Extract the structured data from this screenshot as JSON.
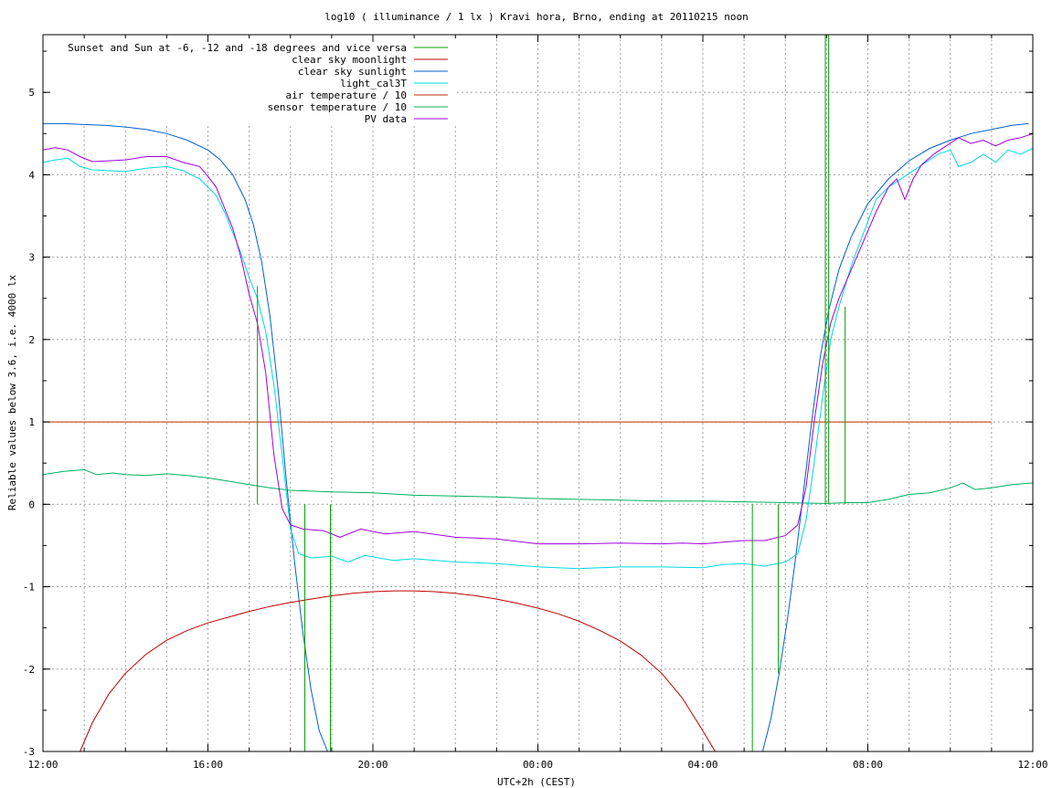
{
  "chart_data": {
    "type": "line",
    "title": "log10 ( illuminance / 1 lx ) Kravi hora, Brno, ending at 20110215 noon",
    "xlabel": "UTC+2h (CEST)",
    "ylabel": "Reliable values below 3.6, i.e. 4000 lx",
    "xlim": [
      12,
      36
    ],
    "ylim": [
      -3,
      5.7
    ],
    "grid": true,
    "legend_position": "top-left",
    "x_ticks": [
      {
        "v": 12,
        "label": "12:00"
      },
      {
        "v": 16,
        "label": "16:00"
      },
      {
        "v": 20,
        "label": "20:00"
      },
      {
        "v": 24,
        "label": "00:00"
      },
      {
        "v": 28,
        "label": "04:00"
      },
      {
        "v": 32,
        "label": "08:00"
      },
      {
        "v": 36,
        "label": "12:00"
      }
    ],
    "x_minor_step": 1,
    "y_ticks": [
      {
        "v": -3,
        "label": "-3"
      },
      {
        "v": -2,
        "label": "-2"
      },
      {
        "v": -1,
        "label": "-1"
      },
      {
        "v": 0,
        "label": "0"
      },
      {
        "v": 1,
        "label": "1"
      },
      {
        "v": 2,
        "label": "2"
      },
      {
        "v": 3,
        "label": "3"
      },
      {
        "v": 4,
        "label": "4"
      },
      {
        "v": 5,
        "label": "5"
      }
    ],
    "y_minor_step": 0.5,
    "series": [
      {
        "name": "Sunset and Sun at -6, -12 and -18 degrees and vice versa",
        "color": "#00a000",
        "kind": "impulses",
        "values": [
          {
            "x": 17.2,
            "y": 2.65
          },
          {
            "x": 18.35,
            "y": -3
          },
          {
            "x": 18.97,
            "y": -3
          },
          {
            "x": 29.2,
            "y": -3
          },
          {
            "x": 29.83,
            "y": -2.05
          },
          {
            "x": 30.97,
            "y": 5.7
          },
          {
            "x": 31.05,
            "y": 5.7
          },
          {
            "x": 31.45,
            "y": 2.4
          }
        ]
      },
      {
        "name": "clear sky moonlight",
        "color": "#c00000",
        "kind": "line",
        "values": [
          [
            12.9,
            -3
          ],
          [
            13.2,
            -2.65
          ],
          [
            13.6,
            -2.3
          ],
          [
            14.0,
            -2.05
          ],
          [
            14.5,
            -1.82
          ],
          [
            15.0,
            -1.65
          ],
          [
            15.5,
            -1.53
          ],
          [
            16.0,
            -1.44
          ],
          [
            16.5,
            -1.37
          ],
          [
            17.0,
            -1.3
          ],
          [
            17.5,
            -1.24
          ],
          [
            18.0,
            -1.19
          ],
          [
            18.5,
            -1.15
          ],
          [
            19.0,
            -1.11
          ],
          [
            19.5,
            -1.08
          ],
          [
            20.0,
            -1.06
          ],
          [
            20.5,
            -1.05
          ],
          [
            21.0,
            -1.05
          ],
          [
            21.5,
            -1.06
          ],
          [
            22.0,
            -1.08
          ],
          [
            22.5,
            -1.11
          ],
          [
            23.0,
            -1.15
          ],
          [
            23.5,
            -1.2
          ],
          [
            24.0,
            -1.26
          ],
          [
            24.5,
            -1.33
          ],
          [
            25.0,
            -1.42
          ],
          [
            25.5,
            -1.53
          ],
          [
            26.0,
            -1.66
          ],
          [
            26.5,
            -1.83
          ],
          [
            27.0,
            -2.05
          ],
          [
            27.5,
            -2.35
          ],
          [
            28.0,
            -2.75
          ],
          [
            28.3,
            -3.0
          ]
        ]
      },
      {
        "name": "clear sky sunlight",
        "color": "#0060d0",
        "kind": "line",
        "values": [
          [
            12.0,
            4.62
          ],
          [
            12.5,
            4.62
          ],
          [
            13.0,
            4.61
          ],
          [
            13.5,
            4.6
          ],
          [
            14.0,
            4.58
          ],
          [
            14.5,
            4.55
          ],
          [
            15.0,
            4.5
          ],
          [
            15.5,
            4.42
          ],
          [
            16.0,
            4.3
          ],
          [
            16.3,
            4.18
          ],
          [
            16.6,
            4.0
          ],
          [
            16.9,
            3.7
          ],
          [
            17.1,
            3.4
          ],
          [
            17.3,
            2.95
          ],
          [
            17.5,
            2.3
          ],
          [
            17.7,
            1.4
          ],
          [
            17.9,
            0.3
          ],
          [
            18.1,
            -0.7
          ],
          [
            18.3,
            -1.55
          ],
          [
            18.5,
            -2.25
          ],
          [
            18.7,
            -2.75
          ],
          [
            18.9,
            -3.0
          ],
          [
            29.45,
            -3.0
          ],
          [
            29.65,
            -2.6
          ],
          [
            29.85,
            -2.05
          ],
          [
            30.05,
            -1.4
          ],
          [
            30.25,
            -0.65
          ],
          [
            30.45,
            0.2
          ],
          [
            30.65,
            1.05
          ],
          [
            30.85,
            1.8
          ],
          [
            31.05,
            2.35
          ],
          [
            31.3,
            2.85
          ],
          [
            31.6,
            3.25
          ],
          [
            32.0,
            3.65
          ],
          [
            32.5,
            3.95
          ],
          [
            33.0,
            4.17
          ],
          [
            33.5,
            4.32
          ],
          [
            34.0,
            4.42
          ],
          [
            34.5,
            4.5
          ],
          [
            35.0,
            4.55
          ],
          [
            35.5,
            4.6
          ],
          [
            35.9,
            4.62
          ]
        ]
      },
      {
        "name": "light_cal3T",
        "color": "#00d8e0",
        "kind": "line",
        "values": [
          [
            12.0,
            4.15
          ],
          [
            12.3,
            4.18
          ],
          [
            12.6,
            4.2
          ],
          [
            12.9,
            4.1
          ],
          [
            13.2,
            4.06
          ],
          [
            13.6,
            4.05
          ],
          [
            14.0,
            4.04
          ],
          [
            14.5,
            4.08
          ],
          [
            15.0,
            4.1
          ],
          [
            15.4,
            4.05
          ],
          [
            15.8,
            3.95
          ],
          [
            16.0,
            3.85
          ],
          [
            16.2,
            3.75
          ],
          [
            16.4,
            3.55
          ],
          [
            16.6,
            3.3
          ],
          [
            16.8,
            3.05
          ],
          [
            17.0,
            2.75
          ],
          [
            17.2,
            2.5
          ],
          [
            17.4,
            2.1
          ],
          [
            17.6,
            1.45
          ],
          [
            17.8,
            0.6
          ],
          [
            18.0,
            -0.3
          ],
          [
            18.2,
            -0.6
          ],
          [
            18.5,
            -0.65
          ],
          [
            19.0,
            -0.63
          ],
          [
            19.4,
            -0.7
          ],
          [
            19.8,
            -0.62
          ],
          [
            20.5,
            -0.68
          ],
          [
            21.0,
            -0.66
          ],
          [
            22.0,
            -0.7
          ],
          [
            23.0,
            -0.72
          ],
          [
            24.0,
            -0.76
          ],
          [
            25.0,
            -0.78
          ],
          [
            26.0,
            -0.76
          ],
          [
            27.0,
            -0.76
          ],
          [
            28.0,
            -0.77
          ],
          [
            28.5,
            -0.73
          ],
          [
            29.0,
            -0.72
          ],
          [
            29.5,
            -0.75
          ],
          [
            30.0,
            -0.7
          ],
          [
            30.3,
            -0.6
          ],
          [
            30.5,
            -0.2
          ],
          [
            30.7,
            0.5
          ],
          [
            30.9,
            1.3
          ],
          [
            31.1,
            2.0
          ],
          [
            31.3,
            2.4
          ],
          [
            31.6,
            2.9
          ],
          [
            31.9,
            3.3
          ],
          [
            32.2,
            3.7
          ],
          [
            32.5,
            3.85
          ],
          [
            32.8,
            3.95
          ],
          [
            33.1,
            4.05
          ],
          [
            33.4,
            4.15
          ],
          [
            33.7,
            4.25
          ],
          [
            34.0,
            4.3
          ],
          [
            34.2,
            4.1
          ],
          [
            34.5,
            4.15
          ],
          [
            34.8,
            4.25
          ],
          [
            35.1,
            4.15
          ],
          [
            35.4,
            4.3
          ],
          [
            35.7,
            4.25
          ],
          [
            36.0,
            4.32
          ]
        ]
      },
      {
        "name": "air temperature / 10",
        "color": "#c03000",
        "kind": "line",
        "values": [
          [
            12.0,
            1.0
          ],
          [
            35.0,
            1.0
          ]
        ]
      },
      {
        "name": "sensor temperature / 10",
        "color": "#00b060",
        "kind": "line",
        "values": [
          [
            12.0,
            0.36
          ],
          [
            12.5,
            0.4
          ],
          [
            13.0,
            0.42
          ],
          [
            13.3,
            0.36
          ],
          [
            13.7,
            0.38
          ],
          [
            14.0,
            0.36
          ],
          [
            14.5,
            0.35
          ],
          [
            15.0,
            0.37
          ],
          [
            15.5,
            0.35
          ],
          [
            16.0,
            0.32
          ],
          [
            16.5,
            0.28
          ],
          [
            17.0,
            0.24
          ],
          [
            17.5,
            0.2
          ],
          [
            18.0,
            0.17
          ],
          [
            19.0,
            0.15
          ],
          [
            20.0,
            0.14
          ],
          [
            21.0,
            0.11
          ],
          [
            22.0,
            0.1
          ],
          [
            23.0,
            0.09
          ],
          [
            24.0,
            0.07
          ],
          [
            25.0,
            0.06
          ],
          [
            26.0,
            0.05
          ],
          [
            27.0,
            0.04
          ],
          [
            28.0,
            0.04
          ],
          [
            29.0,
            0.03
          ],
          [
            30.0,
            0.02
          ],
          [
            31.0,
            0.01
          ],
          [
            31.5,
            0.02
          ],
          [
            32.0,
            0.02
          ],
          [
            32.5,
            0.06
          ],
          [
            33.0,
            0.12
          ],
          [
            33.5,
            0.14
          ],
          [
            34.0,
            0.2
          ],
          [
            34.3,
            0.26
          ],
          [
            34.6,
            0.18
          ],
          [
            35.0,
            0.2
          ],
          [
            35.5,
            0.24
          ],
          [
            36.0,
            0.26
          ]
        ]
      },
      {
        "name": "PV data",
        "color": "#a000e0",
        "kind": "line",
        "values": [
          [
            12.0,
            4.3
          ],
          [
            12.3,
            4.33
          ],
          [
            12.6,
            4.3
          ],
          [
            12.9,
            4.22
          ],
          [
            13.2,
            4.16
          ],
          [
            13.6,
            4.17
          ],
          [
            14.0,
            4.18
          ],
          [
            14.5,
            4.22
          ],
          [
            15.0,
            4.22
          ],
          [
            15.4,
            4.15
          ],
          [
            15.8,
            4.1
          ],
          [
            16.0,
            3.98
          ],
          [
            16.2,
            3.85
          ],
          [
            16.4,
            3.6
          ],
          [
            16.6,
            3.35
          ],
          [
            16.8,
            3.0
          ],
          [
            17.0,
            2.55
          ],
          [
            17.2,
            2.2
          ],
          [
            17.4,
            1.6
          ],
          [
            17.6,
            0.6
          ],
          [
            17.8,
            -0.05
          ],
          [
            18.0,
            -0.25
          ],
          [
            18.3,
            -0.3
          ],
          [
            18.8,
            -0.32
          ],
          [
            19.2,
            -0.4
          ],
          [
            19.7,
            -0.3
          ],
          [
            20.3,
            -0.36
          ],
          [
            21.0,
            -0.33
          ],
          [
            22.0,
            -0.4
          ],
          [
            23.0,
            -0.42
          ],
          [
            24.0,
            -0.48
          ],
          [
            25.0,
            -0.48
          ],
          [
            26.0,
            -0.47
          ],
          [
            27.0,
            -0.48
          ],
          [
            27.5,
            -0.47
          ],
          [
            28.0,
            -0.48
          ],
          [
            28.5,
            -0.46
          ],
          [
            29.0,
            -0.44
          ],
          [
            29.5,
            -0.44
          ],
          [
            30.0,
            -0.38
          ],
          [
            30.3,
            -0.25
          ],
          [
            30.5,
            0.2
          ],
          [
            30.7,
            1.0
          ],
          [
            30.9,
            1.7
          ],
          [
            31.1,
            2.2
          ],
          [
            31.3,
            2.5
          ],
          [
            31.6,
            2.85
          ],
          [
            31.9,
            3.2
          ],
          [
            32.2,
            3.55
          ],
          [
            32.5,
            3.85
          ],
          [
            32.7,
            3.95
          ],
          [
            32.9,
            3.7
          ],
          [
            33.1,
            3.95
          ],
          [
            33.3,
            4.12
          ],
          [
            33.6,
            4.25
          ],
          [
            33.9,
            4.35
          ],
          [
            34.2,
            4.45
          ],
          [
            34.5,
            4.38
          ],
          [
            34.8,
            4.42
          ],
          [
            35.1,
            4.35
          ],
          [
            35.4,
            4.42
          ],
          [
            35.7,
            4.45
          ],
          [
            36.0,
            4.5
          ]
        ]
      }
    ]
  }
}
